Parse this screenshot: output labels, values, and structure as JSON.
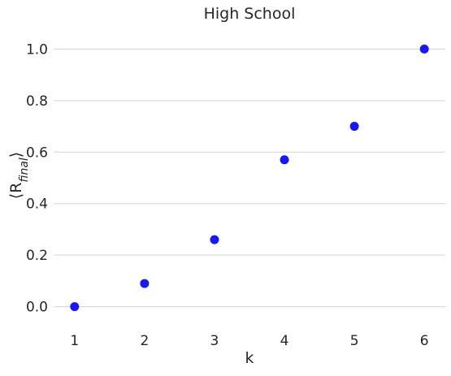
{
  "chart_data": {
    "type": "scatter",
    "title": "High School",
    "xlabel": "k",
    "ylabel": "⟨R_final⟩",
    "ylabel_main": "⟨R",
    "ylabel_sub": "final",
    "ylabel_close": "⟩",
    "x": [
      1,
      2,
      3,
      4,
      5,
      6
    ],
    "y": [
      0.0,
      0.09,
      0.26,
      0.57,
      0.7,
      1.0
    ],
    "xticks": [
      "1",
      "2",
      "3",
      "4",
      "5",
      "6"
    ],
    "yticks": [
      "0.0",
      "0.2",
      "0.4",
      "0.6",
      "0.8",
      "1.0"
    ],
    "xlim": [
      0.7,
      6.3
    ],
    "ylim": [
      -0.08,
      1.08
    ],
    "grid": "horizontal",
    "legend": "none",
    "marker_color": "#1818f0"
  }
}
